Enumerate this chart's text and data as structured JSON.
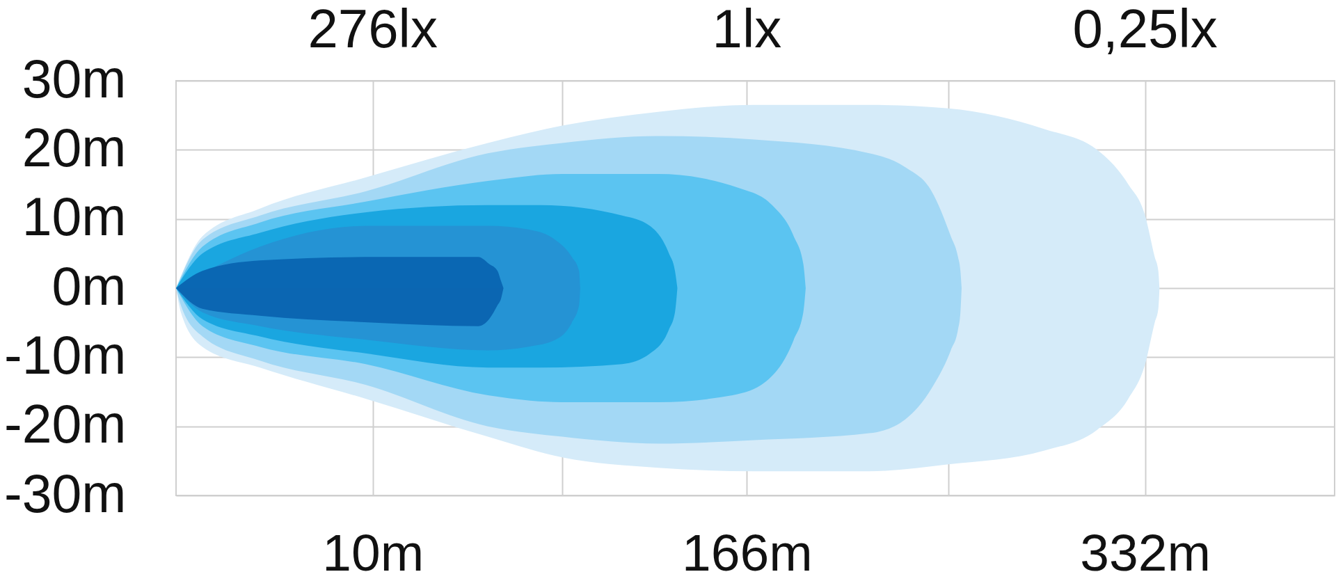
{
  "chart_data": {
    "type": "area",
    "xlim": [
      -72,
      411
    ],
    "xticks": [
      {
        "value": 10,
        "label": "10m"
      },
      {
        "value": 89,
        "label": null
      },
      {
        "value": 166,
        "label": "166m"
      },
      {
        "value": 250,
        "label": null
      },
      {
        "value": 332,
        "label": "332m"
      }
    ],
    "ylim": [
      -30,
      30
    ],
    "yticks": [
      {
        "value": -30,
        "label": "-30m"
      },
      {
        "value": -20,
        "label": "-20m"
      },
      {
        "value": -10,
        "label": "-10m"
      },
      {
        "value": 0,
        "label": "0m"
      },
      {
        "value": 10,
        "label": "10m"
      },
      {
        "value": 20,
        "label": "20m"
      },
      {
        "value": 30,
        "label": "30m"
      }
    ],
    "grid": true,
    "annotations": [
      "276lx",
      "1lx",
      "0,25lx"
    ],
    "series": [
      {
        "color": "#d5ebf9",
        "x": [
          -72,
          -61,
          -37,
          7,
          58,
          89,
          129,
          169,
          217,
          250,
          290,
          312,
          325,
          332,
          336,
          337.5,
          338
        ],
        "values": [
          0,
          7.5,
          11.5,
          16,
          21,
          23.5,
          25.5,
          26.5,
          26.5,
          26,
          23,
          20,
          15,
          10.5,
          4.5,
          2.5,
          0
        ]
      },
      {
        "color": "#d5ebf9",
        "x": [
          -72,
          -70,
          -61,
          -37,
          7,
          58,
          89,
          129,
          169,
          217,
          250,
          290,
          312,
          325,
          332,
          336,
          337.5,
          338
        ],
        "values": [
          0,
          -3.5,
          -8.5,
          -11.5,
          -16,
          -21.5,
          -24.5,
          -26,
          -26.5,
          -26.5,
          -25.5,
          -23.5,
          -20.5,
          -16,
          -11,
          -5,
          -3,
          0
        ]
      },
      {
        "color": "#a3d8f5",
        "x": [
          -72,
          -61,
          -37,
          7,
          58,
          89,
          129,
          169,
          217,
          232,
          243,
          251,
          254,
          255,
          255.5
        ],
        "values": [
          0,
          7,
          10.5,
          14,
          19.5,
          21,
          22,
          21.5,
          19.5,
          17.5,
          14,
          7.5,
          4.5,
          2.5,
          0
        ]
      },
      {
        "color": "#a3d8f5",
        "x": [
          -72,
          -70,
          -61,
          -37,
          7,
          58,
          89,
          129,
          169,
          217,
          232,
          243,
          251,
          254,
          255,
          255.5
        ],
        "values": [
          0,
          -2.5,
          -7,
          -10.5,
          -14,
          -20,
          -21.5,
          -22.5,
          -22,
          -21,
          -19,
          -14.5,
          -9,
          -6,
          -3.5,
          0
        ]
      },
      {
        "color": "#5bc4f1",
        "x": [
          -72,
          -61,
          -37,
          7,
          58,
          89,
          117,
          129,
          162.5,
          176.5,
          185.5,
          189.5,
          190.5
        ],
        "values": [
          0,
          6,
          9.5,
          12.5,
          15.5,
          16.5,
          16.5,
          16.5,
          14.5,
          12,
          7.5,
          3.5,
          0
        ]
      },
      {
        "color": "#5bc4f1",
        "x": [
          -72,
          -61,
          -37,
          7,
          58,
          89,
          117,
          129,
          160,
          174,
          185.5,
          189.5,
          190.5
        ],
        "values": [
          0,
          -5.5,
          -8.5,
          -11,
          -15.5,
          -16.5,
          -16.5,
          -16.5,
          -15.5,
          -13.5,
          -7.5,
          -3.5,
          0
        ]
      },
      {
        "color": "#1aa6e0",
        "x": [
          -72,
          -61,
          -37,
          8,
          58,
          80,
          114,
          125.5,
          133.5,
          136,
          137
        ],
        "values": [
          0,
          5,
          8,
          11,
          12,
          12,
          10.5,
          9,
          5,
          2.5,
          0
        ]
      },
      {
        "color": "#1aa6e0",
        "x": [
          -72,
          -61,
          -37,
          8,
          58,
          80,
          114,
          125.5,
          133.5,
          136,
          137
        ],
        "values": [
          0,
          -4.5,
          -7,
          -9.5,
          -11.5,
          -11.5,
          -11,
          -9.5,
          -6,
          -3.5,
          0
        ]
      },
      {
        "color": "#2593d4",
        "x": [
          -72,
          -37,
          8,
          58,
          74.5,
          86,
          93,
          96,
          96.5
        ],
        "values": [
          0,
          6,
          9,
          9,
          8.5,
          7,
          4.5,
          2.5,
          0
        ]
      },
      {
        "color": "#2593d4",
        "x": [
          -72,
          -61,
          -37,
          8,
          58,
          74.5,
          86,
          93,
          96,
          96.5
        ],
        "values": [
          0,
          -3.5,
          -5.5,
          -7.5,
          -9,
          -8.5,
          -7.5,
          -5,
          -2.5,
          0
        ]
      },
      {
        "color": "#0a67b3",
        "x": [
          -72,
          -61,
          -37,
          11,
          54,
          58.5,
          62,
          63.5,
          64.5
        ],
        "values": [
          0,
          2.5,
          4,
          4.5,
          4.5,
          3.5,
          2.5,
          1,
          0
        ]
      },
      {
        "color": "#0b66b2",
        "x": [
          -72,
          -61,
          -37,
          11,
          54,
          58.5,
          62,
          63.5,
          64.5
        ],
        "values": [
          0,
          -3,
          -4,
          -5,
          -5.5,
          -4.5,
          -2.5,
          -1.5,
          0
        ]
      }
    ]
  }
}
